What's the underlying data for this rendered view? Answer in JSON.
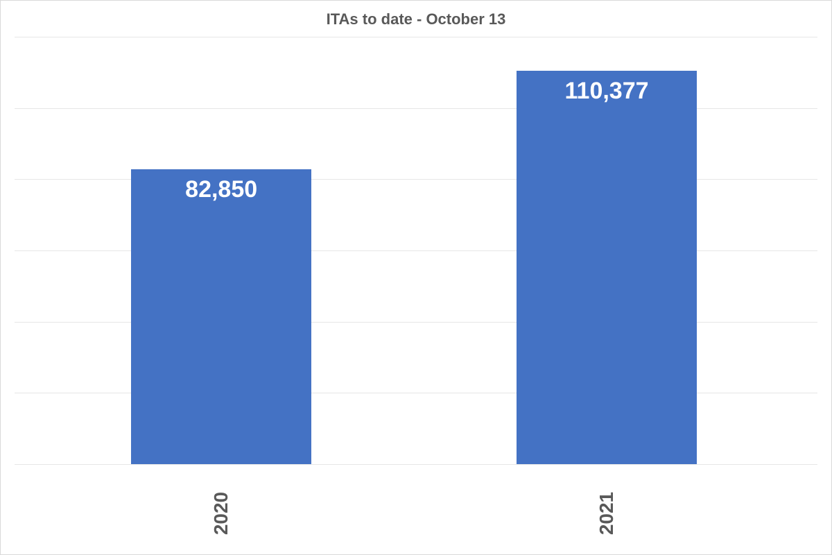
{
  "chart": {
    "type": "bar",
    "title": "ITAs to date - October 13",
    "title_fontsize": 22,
    "title_color": "#595959",
    "background_color": "#ffffff",
    "grid_color": "#e6e6e6",
    "gridline_count": 7,
    "ylim_max": 120000,
    "bars": [
      {
        "category": "2020",
        "value": 82850,
        "label": "82,850",
        "left_pct": 14.5,
        "width_pct": 22.5
      },
      {
        "category": "2021",
        "value": 110377,
        "label": "110,377",
        "left_pct": 62.5,
        "width_pct": 22.5
      }
    ],
    "bar_color": "#4472c4",
    "data_label_color": "#ffffff",
    "data_label_fontsize": 34,
    "axis_label_color": "#595959",
    "axis_label_fontsize": 28
  }
}
